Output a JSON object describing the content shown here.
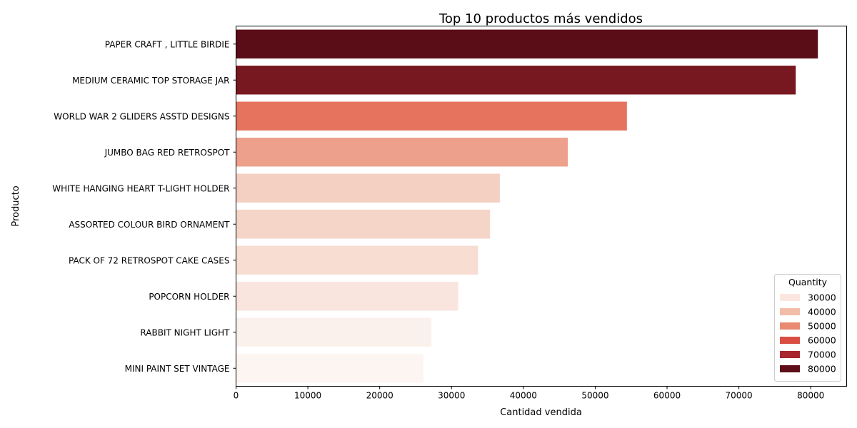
{
  "chart_data": {
    "type": "bar",
    "orientation": "horizontal",
    "title": "Top 10 productos más vendidos",
    "xlabel": "Cantidad vendida",
    "ylabel": "Producto",
    "xlim": [
      0,
      85000
    ],
    "xticks": [
      0,
      10000,
      20000,
      30000,
      40000,
      50000,
      60000,
      70000,
      80000
    ],
    "xtick_labels": [
      "0",
      "10000",
      "20000",
      "30000",
      "40000",
      "50000",
      "60000",
      "70000",
      "80000"
    ],
    "categories": [
      "PAPER CRAFT , LITTLE BIRDIE",
      "MEDIUM CERAMIC TOP STORAGE JAR",
      "WORLD WAR 2 GLIDERS ASSTD DESIGNS",
      "JUMBO BAG RED RETROSPOT",
      "WHITE HANGING HEART T-LIGHT HOLDER",
      "ASSORTED COLOUR BIRD ORNAMENT",
      "PACK OF 72 RETROSPOT CAKE CASES",
      "POPCORN HOLDER",
      "RABBIT NIGHT LIGHT",
      "MINI PAINT SET VINTAGE"
    ],
    "values": [
      80995,
      77916,
      54415,
      46181,
      36725,
      35362,
      33693,
      30931,
      27202,
      26076
    ],
    "bar_colors": [
      "#5b0d17",
      "#771820",
      "#e5735e",
      "#eda08b",
      "#f4d0c2",
      "#f5d5c8",
      "#f8ddd3",
      "#f9e5de",
      "#fbf1ec",
      "#fdf5f1"
    ],
    "legend": {
      "title": "Quantity",
      "placement": "lower-right",
      "entries": [
        {
          "label": "30000",
          "color": "#fbe7df"
        },
        {
          "label": "40000",
          "color": "#f2bca8"
        },
        {
          "label": "50000",
          "color": "#e98a73"
        },
        {
          "label": "60000",
          "color": "#da4d43"
        },
        {
          "label": "70000",
          "color": "#a9262e"
        },
        {
          "label": "80000",
          "color": "#5e0e18"
        }
      ]
    },
    "grid": false
  }
}
